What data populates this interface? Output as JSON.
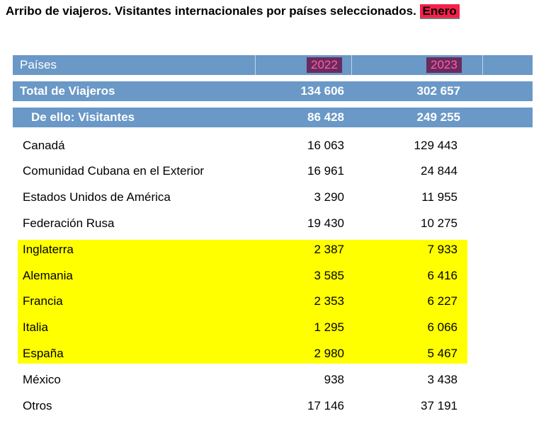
{
  "title": {
    "text": "Arribo de viajeros. Visitantes internacionales por países seleccionados.",
    "month": "Enero"
  },
  "header": {
    "col_label": "Países",
    "years": [
      "2022",
      "2023"
    ]
  },
  "total": {
    "label": "Total de Viajeros",
    "v2022": "134 606",
    "v2023": "302 657"
  },
  "visitors": {
    "label": "De ello: Visitantes",
    "v2022": "86 428",
    "v2023": "249 255"
  },
  "rows": [
    {
      "country": "Canadá",
      "v2022": "16 063",
      "v2023": "129 443"
    },
    {
      "country": "Comunidad Cubana en el Exterior",
      "v2022": "16 961",
      "v2023": "24 844"
    },
    {
      "country": "Estados Unidos de América",
      "v2022": "3 290",
      "v2023": "11 955"
    },
    {
      "country": "Federación Rusa",
      "v2022": "19 430",
      "v2023": "10 275"
    },
    {
      "country": "Inglaterra",
      "v2022": "2 387",
      "v2023": "7 933"
    },
    {
      "country": "Alemania",
      "v2022": "3 585",
      "v2023": "6 416"
    },
    {
      "country": "Francia",
      "v2022": "2 353",
      "v2023": "6 227"
    },
    {
      "country": "Italia",
      "v2022": "1 295",
      "v2023": "6 066"
    },
    {
      "country": "España",
      "v2022": "2 980",
      "v2023": "5 467"
    },
    {
      "country": "México",
      "v2022": "938",
      "v2023": "3 438"
    },
    {
      "country": "Otros",
      "v2022": "17 146",
      "v2023": "37 191"
    }
  ],
  "colors": {
    "band": "#6a98c7",
    "highlight": "#ffff00",
    "month_badge": "#f6204a",
    "year_badge": "#6b2a5d",
    "year_text": "#ff5fa8"
  }
}
